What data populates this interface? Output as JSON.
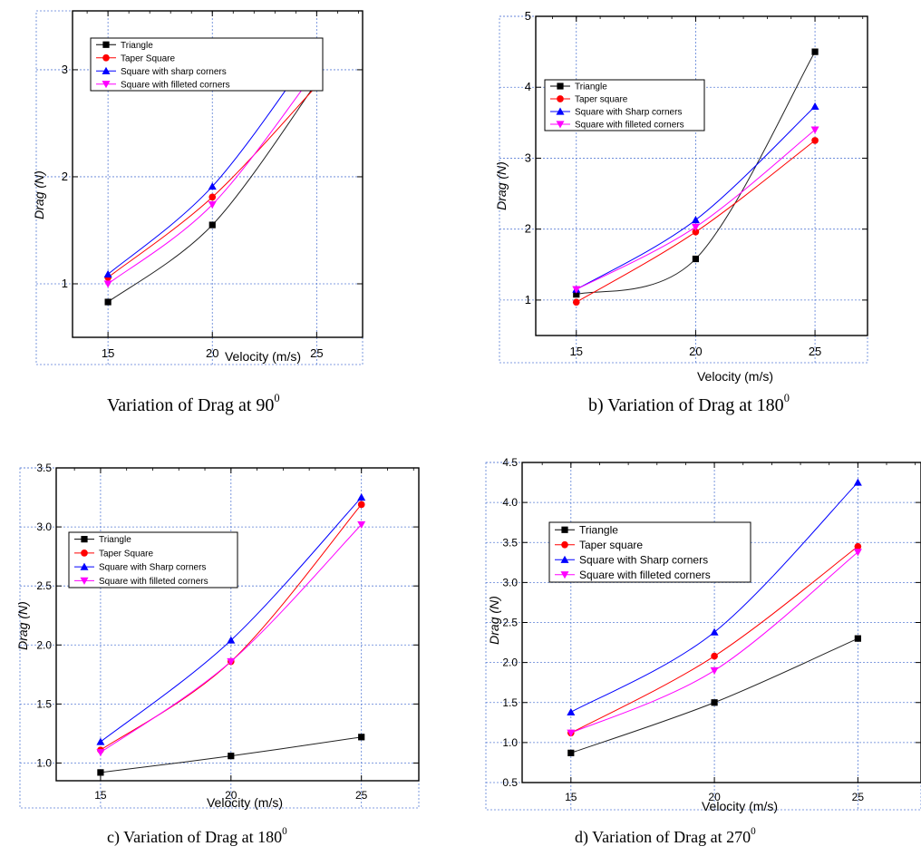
{
  "chart_data": [
    {
      "type": "line",
      "caption_prefix": "Variation of Drag at 90",
      "caption_sup": "0",
      "xlabel": "Velocity (m/s)",
      "ylabel": "Drag (N)",
      "x": [
        15,
        20,
        25
      ],
      "xticks": [
        "15",
        "20",
        "25"
      ],
      "yticks": [
        "1",
        "2",
        "3"
      ],
      "xlim": [
        13.3,
        27.2
      ],
      "ylim": [
        0.5,
        3.55
      ],
      "legend_position": "top-left",
      "series": [
        {
          "name": "Triangle",
          "values": [
            0.83,
            1.55,
            2.88
          ],
          "color": "#000000",
          "marker": "square"
        },
        {
          "name": "Taper Square",
          "values": [
            1.06,
            1.81,
            2.85
          ],
          "color": "#ff0000",
          "marker": "circle"
        },
        {
          "name": "Square with sharp corners",
          "values": [
            1.09,
            1.91,
            3.22
          ],
          "color": "#0000ff",
          "marker": "triangle-up"
        },
        {
          "name": "Square with filleted corners",
          "values": [
            1.0,
            1.74,
            3.0
          ],
          "color": "#ff00ff",
          "marker": "triangle-down"
        }
      ]
    },
    {
      "type": "line",
      "caption_prefix": "b) Variation of Drag at 180",
      "caption_sup": "0",
      "xlabel": "Velocity (m/s)",
      "ylabel": "Drag (N)",
      "x": [
        15,
        20,
        25
      ],
      "xticks": [
        "15",
        "20",
        "25"
      ],
      "yticks": [
        "1",
        "2",
        "3",
        "4",
        "5"
      ],
      "xlim": [
        13.3,
        27.2
      ],
      "ylim": [
        0.5,
        5.0
      ],
      "legend_position": "top-left",
      "series": [
        {
          "name": "Triangle",
          "values": [
            1.08,
            1.58,
            4.5
          ],
          "color": "#000000",
          "marker": "square"
        },
        {
          "name": "Taper square",
          "values": [
            0.97,
            1.96,
            3.25
          ],
          "color": "#ff0000",
          "marker": "circle"
        },
        {
          "name": "Square with Sharp corners",
          "values": [
            1.15,
            2.13,
            3.73
          ],
          "color": "#0000ff",
          "marker": "triangle-up"
        },
        {
          "name": "Square with filleted corners",
          "values": [
            1.15,
            2.03,
            3.4
          ],
          "color": "#ff00ff",
          "marker": "triangle-down"
        }
      ]
    },
    {
      "type": "line",
      "caption_prefix": "c) Variation of Drag at 180",
      "caption_sup": "0",
      "xlabel": "Velocity (m/s)",
      "ylabel": "Drag (N)",
      "x": [
        15,
        20,
        25
      ],
      "xticks": [
        "15",
        "20",
        "25"
      ],
      "yticks": [
        "1.0",
        "1.5",
        "2.0",
        "2.5",
        "3.0",
        "3.5"
      ],
      "xlim": [
        13.3,
        27.2
      ],
      "ylim": [
        0.85,
        3.5
      ],
      "legend_position": "center-left",
      "series": [
        {
          "name": "Triangle",
          "values": [
            0.92,
            1.06,
            1.22
          ],
          "color": "#000000",
          "marker": "square"
        },
        {
          "name": "Taper Square",
          "values": [
            1.11,
            1.86,
            3.19
          ],
          "color": "#ff0000",
          "marker": "circle"
        },
        {
          "name": "Square with Sharp corners",
          "values": [
            1.18,
            2.04,
            3.25
          ],
          "color": "#0000ff",
          "marker": "triangle-up"
        },
        {
          "name": "Square with filleted corners",
          "values": [
            1.09,
            1.86,
            3.02
          ],
          "color": "#ff00ff",
          "marker": "triangle-down"
        }
      ]
    },
    {
      "type": "line",
      "caption_prefix": "d) Variation of Drag at 270",
      "caption_sup": "0",
      "xlabel": "Velocity (m/s)",
      "ylabel": "Drag (N)",
      "x": [
        15,
        20,
        25
      ],
      "xticks": [
        "15",
        "20",
        "25"
      ],
      "yticks": [
        "0.5",
        "1.0",
        "1.5",
        "2.0",
        "2.5",
        "3.0",
        "3.5",
        "4.0",
        "4.5"
      ],
      "xlim": [
        13.3,
        27.2
      ],
      "ylim": [
        0.5,
        4.5
      ],
      "legend_position": "top-left",
      "series": [
        {
          "name": "Triangle",
          "values": [
            0.87,
            1.5,
            2.3
          ],
          "color": "#000000",
          "marker": "square"
        },
        {
          "name": "Taper square",
          "values": [
            1.12,
            2.08,
            3.45
          ],
          "color": "#ff0000",
          "marker": "circle"
        },
        {
          "name": "Square with Sharp corners",
          "values": [
            1.38,
            2.38,
            4.25
          ],
          "color": "#0000ff",
          "marker": "triangle-up"
        },
        {
          "name": "Square with filleted corners",
          "values": [
            1.12,
            1.9,
            3.38
          ],
          "color": "#ff00ff",
          "marker": "triangle-down"
        }
      ]
    }
  ]
}
